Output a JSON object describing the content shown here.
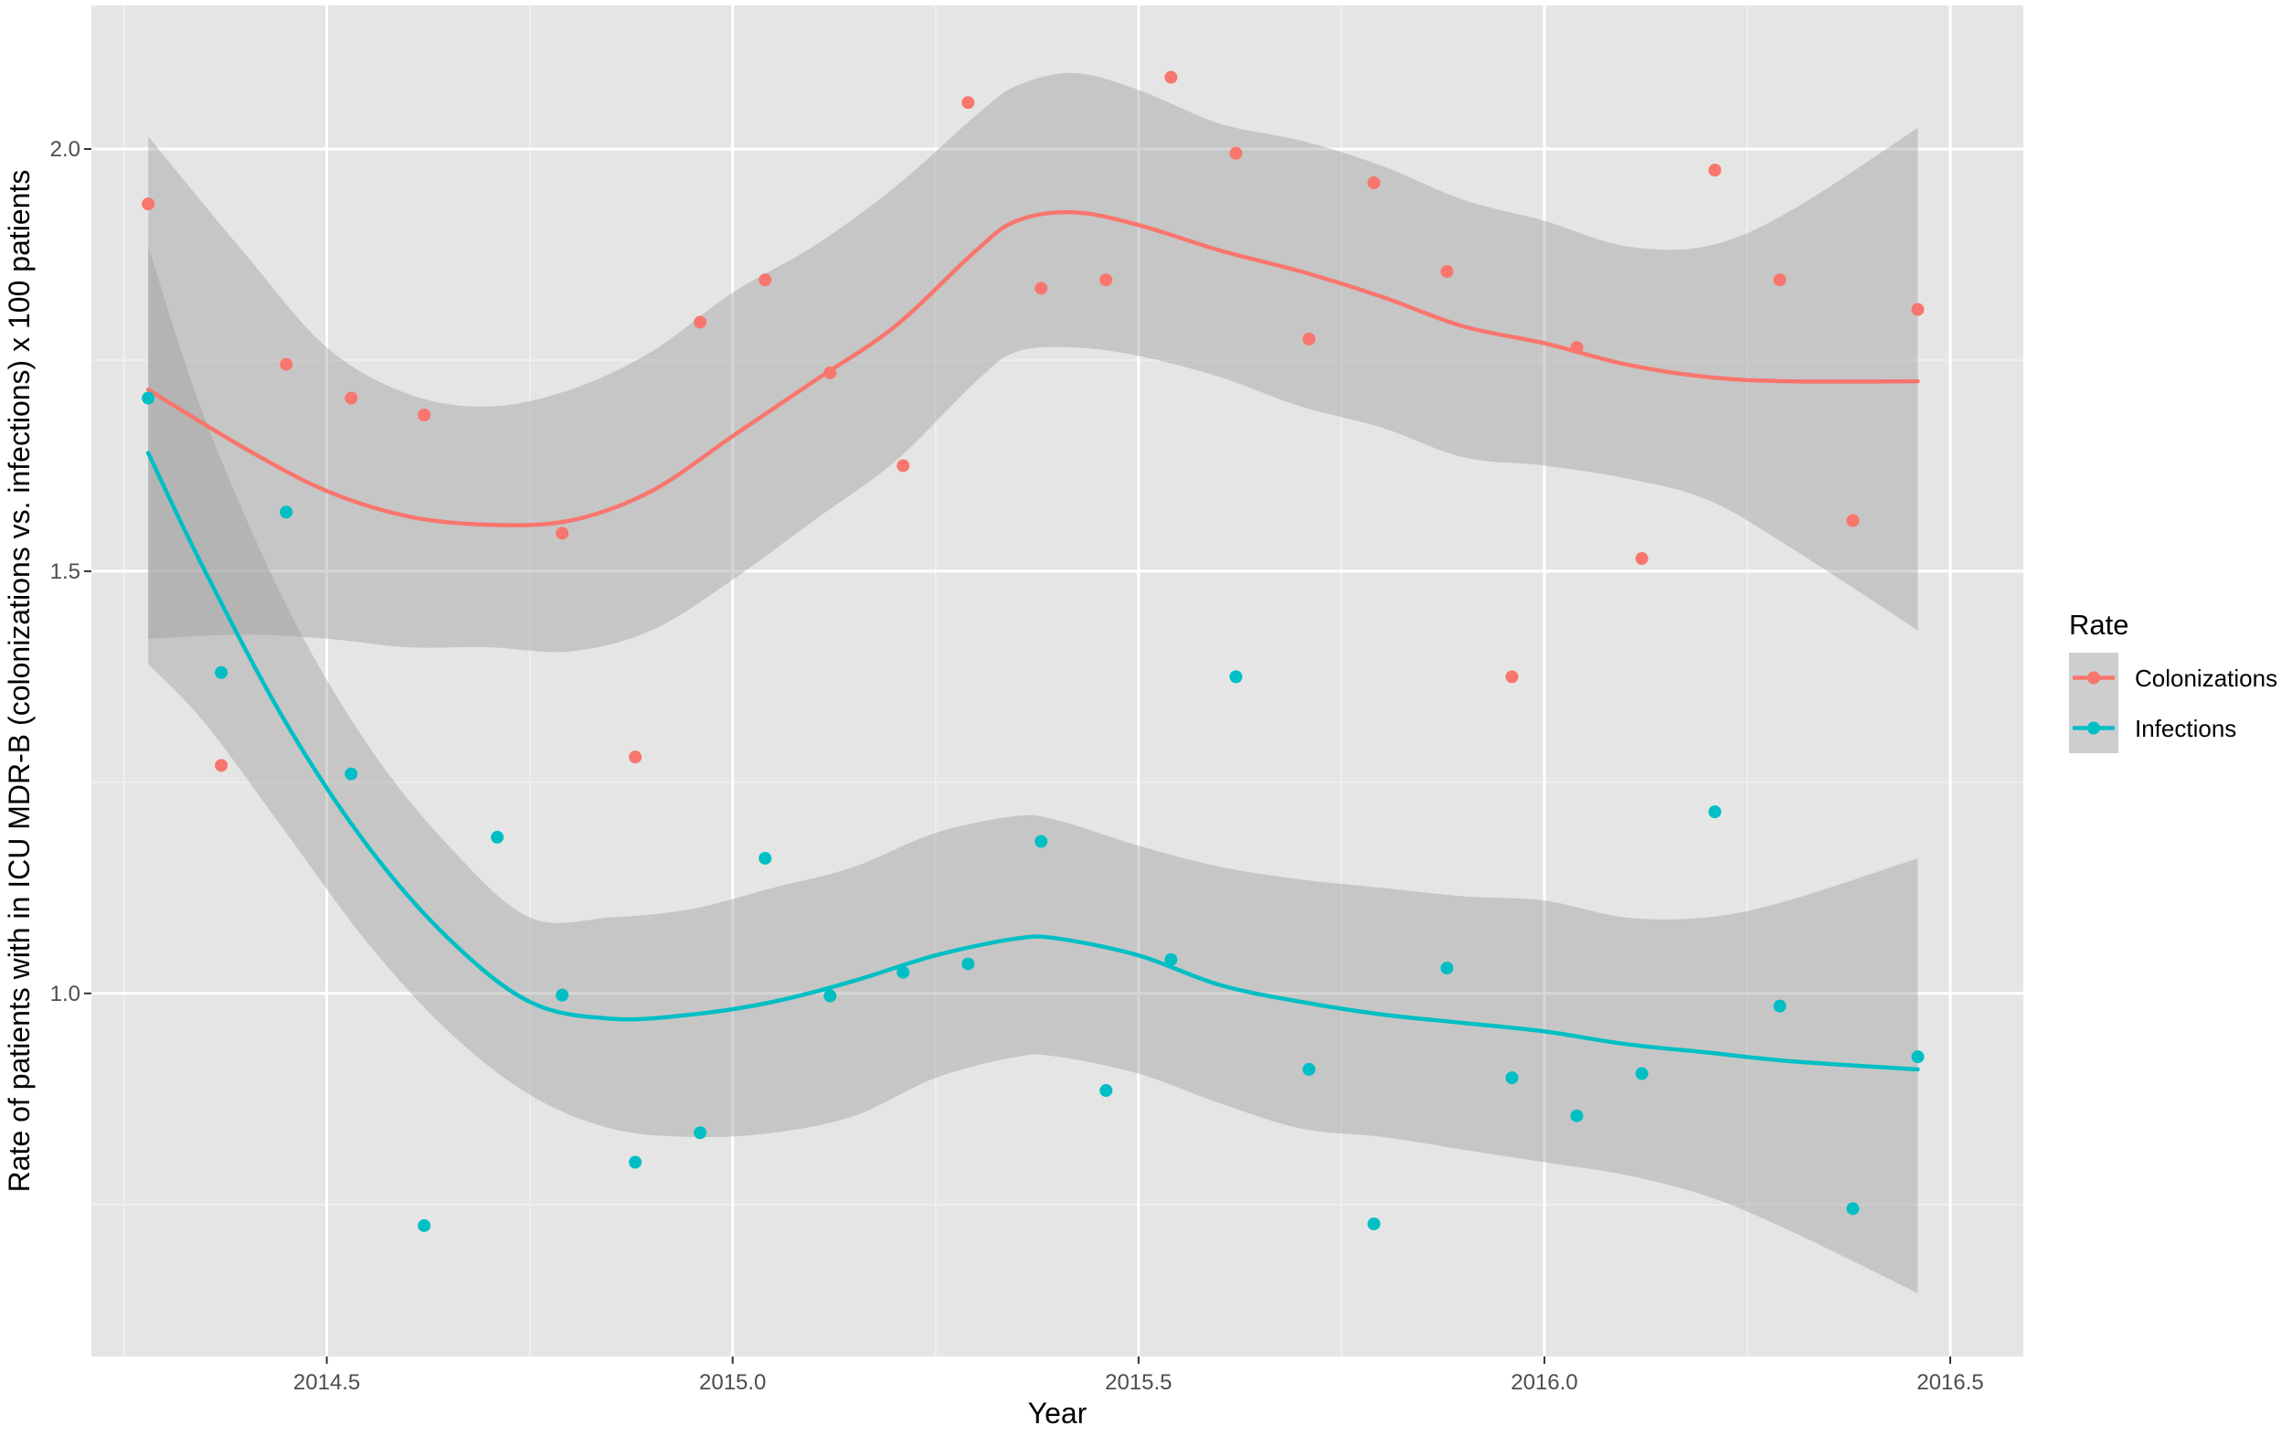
{
  "chart_data": {
    "type": "scatter",
    "title": "",
    "xlabel": "Year",
    "ylabel": "Rate of patients with in ICU MDR-B (colonizations vs. infections) x 100 patients",
    "xlim": [
      2014.21,
      2016.59
    ],
    "ylim": [
      0.57,
      2.17
    ],
    "x_ticks": [
      2014.5,
      2015.0,
      2015.5,
      2016.0,
      2016.5
    ],
    "x_tick_labels": [
      "2014.5",
      "2015.0",
      "2015.5",
      "2016.0",
      "2016.5"
    ],
    "y_ticks": [
      1.0,
      1.5,
      2.0
    ],
    "y_tick_labels": [
      "1.0",
      "1.5",
      "2.0"
    ],
    "grid": true,
    "panel_background": "#e5e5e5",
    "legend": {
      "title": "Rate",
      "position": "right",
      "entries": [
        "Colonizations",
        "Infections"
      ]
    },
    "series": [
      {
        "name": "Colonizations",
        "color": "#f8766d",
        "x": [
          2014.28,
          2014.37,
          2014.45,
          2014.53,
          2014.62,
          2014.79,
          2014.88,
          2014.96,
          2015.04,
          2015.12,
          2015.21,
          2015.29,
          2015.38,
          2015.46,
          2015.54,
          2015.62,
          2015.71,
          2015.79,
          2015.88,
          2015.96,
          2016.04,
          2016.12,
          2016.21,
          2016.29,
          2016.38,
          2016.46
        ],
        "y": [
          1.935,
          1.27,
          1.745,
          1.705,
          1.685,
          1.545,
          1.28,
          1.795,
          1.845,
          1.735,
          1.625,
          2.055,
          1.835,
          1.845,
          2.085,
          1.995,
          1.775,
          1.96,
          1.855,
          1.375,
          1.765,
          1.515,
          1.975,
          1.845,
          1.56,
          1.81
        ],
        "smooth": {
          "x": [
            2014.28,
            2014.4,
            2014.5,
            2014.6,
            2014.7,
            2014.8,
            2014.9,
            2015.0,
            2015.1,
            2015.2,
            2015.3,
            2015.35,
            2015.42,
            2015.5,
            2015.6,
            2015.7,
            2015.8,
            2015.9,
            2016.0,
            2016.1,
            2016.2,
            2016.3,
            2016.46
          ],
          "y": [
            1.715,
            1.645,
            1.595,
            1.565,
            1.555,
            1.56,
            1.595,
            1.66,
            1.725,
            1.79,
            1.88,
            1.915,
            1.925,
            1.91,
            1.88,
            1.855,
            1.825,
            1.79,
            1.77,
            1.745,
            1.73,
            1.725,
            1.725
          ],
          "lower": [
            1.42,
            1.425,
            1.42,
            1.41,
            1.41,
            1.405,
            1.43,
            1.49,
            1.56,
            1.63,
            1.725,
            1.76,
            1.765,
            1.755,
            1.73,
            1.695,
            1.67,
            1.635,
            1.625,
            1.61,
            1.585,
            1.53,
            1.43
          ],
          "upper": [
            2.015,
            1.875,
            1.765,
            1.71,
            1.695,
            1.715,
            1.76,
            1.83,
            1.885,
            1.955,
            2.04,
            2.075,
            2.09,
            2.07,
            2.03,
            2.01,
            1.98,
            1.94,
            1.915,
            1.885,
            1.885,
            1.925,
            2.025
          ]
        }
      },
      {
        "name": "Infections",
        "color": "#00bfc4",
        "x": [
          2014.28,
          2014.37,
          2014.45,
          2014.53,
          2014.62,
          2014.71,
          2014.79,
          2014.88,
          2014.96,
          2015.04,
          2015.12,
          2015.21,
          2015.29,
          2015.38,
          2015.46,
          2015.54,
          2015.62,
          2015.71,
          2015.79,
          2015.88,
          2015.96,
          2016.04,
          2016.12,
          2016.21,
          2016.29,
          2016.38,
          2016.46
        ],
        "y": [
          1.705,
          1.38,
          1.57,
          1.26,
          0.725,
          1.185,
          0.998,
          0.8,
          0.835,
          1.16,
          0.997,
          1.025,
          1.035,
          1.18,
          0.885,
          1.04,
          1.375,
          0.91,
          0.727,
          1.03,
          0.9,
          0.855,
          0.905,
          1.215,
          0.985,
          0.745,
          0.925
        ],
        "smooth": {
          "x": [
            2014.28,
            2014.35,
            2014.45,
            2014.55,
            2014.65,
            2014.75,
            2014.85,
            2014.95,
            2015.05,
            2015.15,
            2015.25,
            2015.35,
            2015.4,
            2015.5,
            2015.6,
            2015.7,
            2015.8,
            2015.9,
            2016.0,
            2016.1,
            2016.2,
            2016.3,
            2016.46
          ],
          "y": [
            1.64,
            1.5,
            1.32,
            1.175,
            1.065,
            0.99,
            0.97,
            0.975,
            0.99,
            1.015,
            1.045,
            1.065,
            1.065,
            1.045,
            1.01,
            0.99,
            0.975,
            0.965,
            0.955,
            0.94,
            0.93,
            0.92,
            0.91
          ],
          "lower": [
            1.39,
            1.32,
            1.19,
            1.06,
            0.955,
            0.88,
            0.84,
            0.83,
            0.835,
            0.855,
            0.9,
            0.925,
            0.925,
            0.905,
            0.87,
            0.84,
            0.83,
            0.815,
            0.8,
            0.785,
            0.76,
            0.72,
            0.645
          ],
          "upper": [
            1.885,
            1.68,
            1.46,
            1.295,
            1.175,
            1.09,
            1.09,
            1.1,
            1.125,
            1.15,
            1.19,
            1.21,
            1.205,
            1.175,
            1.15,
            1.135,
            1.125,
            1.115,
            1.11,
            1.09,
            1.09,
            1.11,
            1.16
          ]
        }
      }
    ]
  }
}
